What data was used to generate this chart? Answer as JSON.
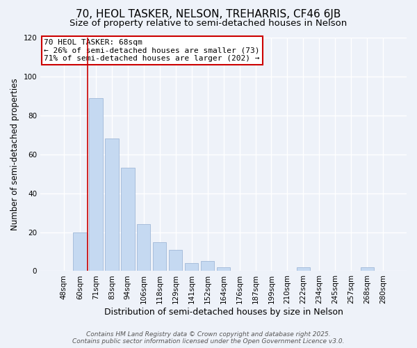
{
  "title": "70, HEOL TASKER, NELSON, TREHARRIS, CF46 6JB",
  "subtitle": "Size of property relative to semi-detached houses in Nelson",
  "xlabel": "Distribution of semi-detached houses by size in Nelson",
  "ylabel": "Number of semi-detached properties",
  "categories": [
    "48sqm",
    "60sqm",
    "71sqm",
    "83sqm",
    "94sqm",
    "106sqm",
    "118sqm",
    "129sqm",
    "141sqm",
    "152sqm",
    "164sqm",
    "176sqm",
    "187sqm",
    "199sqm",
    "210sqm",
    "222sqm",
    "234sqm",
    "245sqm",
    "257sqm",
    "268sqm",
    "280sqm"
  ],
  "values": [
    0,
    20,
    89,
    68,
    53,
    24,
    15,
    11,
    4,
    5,
    2,
    0,
    0,
    0,
    0,
    2,
    0,
    0,
    0,
    2,
    0
  ],
  "bar_color": "#c5d9f1",
  "bar_edge_color": "#a0b8d8",
  "vline_x": 1.5,
  "vline_color": "#cc0000",
  "annotation_title": "70 HEOL TASKER: 68sqm",
  "annotation_line1": "← 26% of semi-detached houses are smaller (73)",
  "annotation_line2": "71% of semi-detached houses are larger (202) →",
  "annotation_box_color": "#cc0000",
  "annotation_bg": "#ffffff",
  "ylim": [
    0,
    120
  ],
  "yticks": [
    0,
    20,
    40,
    60,
    80,
    100,
    120
  ],
  "background_color": "#eef2f9",
  "grid_color": "#ffffff",
  "footer_line1": "Contains HM Land Registry data © Crown copyright and database right 2025.",
  "footer_line2": "Contains public sector information licensed under the Open Government Licence v3.0.",
  "title_fontsize": 11,
  "subtitle_fontsize": 9.5,
  "xlabel_fontsize": 9,
  "ylabel_fontsize": 8.5,
  "tick_fontsize": 7.5,
  "footer_fontsize": 6.5,
  "annotation_fontsize": 8
}
